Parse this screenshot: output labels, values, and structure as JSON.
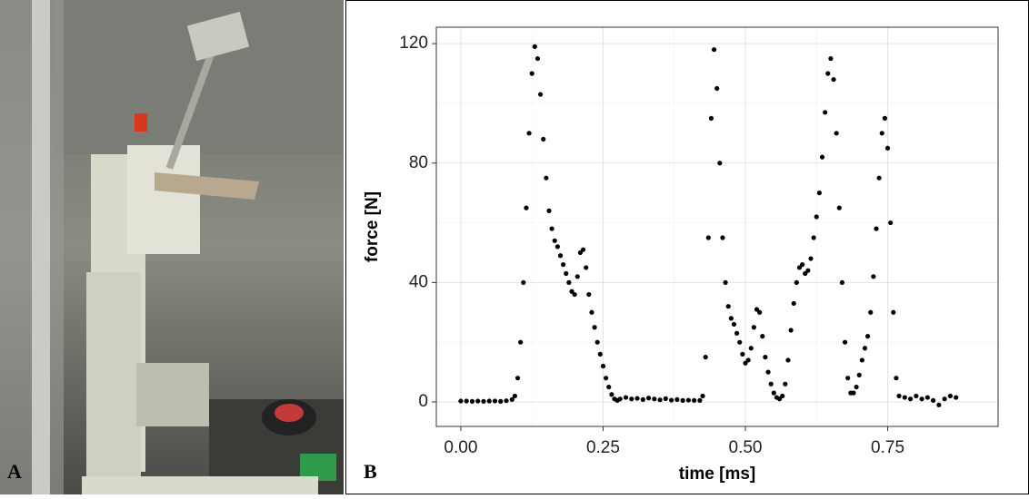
{
  "panel_labels": [
    "A",
    "B"
  ],
  "chart_data": {
    "type": "scatter",
    "x_label": "time [ms]",
    "y_label": "force [N]",
    "x": [
      0,
      0.01,
      0.02,
      0.03,
      0.04,
      0.05,
      0.06,
      0.07,
      0.08,
      0.09,
      0.095,
      0.1,
      0.105,
      0.11,
      0.115,
      0.12,
      0.125,
      0.13,
      0.135,
      0.14,
      0.145,
      0.15,
      0.155,
      0.16,
      0.165,
      0.17,
      0.175,
      0.18,
      0.185,
      0.19,
      0.195,
      0.2,
      0.205,
      0.21,
      0.215,
      0.22,
      0.225,
      0.23,
      0.235,
      0.24,
      0.245,
      0.25,
      0.255,
      0.26,
      0.265,
      0.27,
      0.275,
      0.28,
      0.29,
      0.3,
      0.31,
      0.32,
      0.33,
      0.34,
      0.35,
      0.36,
      0.37,
      0.38,
      0.39,
      0.4,
      0.41,
      0.42,
      0.425,
      0.43,
      0.435,
      0.44,
      0.445,
      0.45,
      0.455,
      0.46,
      0.465,
      0.47,
      0.475,
      0.48,
      0.485,
      0.49,
      0.495,
      0.5,
      0.505,
      0.51,
      0.515,
      0.52,
      0.525,
      0.53,
      0.535,
      0.54,
      0.545,
      0.55,
      0.555,
      0.56,
      0.565,
      0.57,
      0.575,
      0.58,
      0.585,
      0.59,
      0.595,
      0.6,
      0.605,
      0.61,
      0.615,
      0.62,
      0.625,
      0.63,
      0.635,
      0.64,
      0.645,
      0.65,
      0.655,
      0.66,
      0.665,
      0.67,
      0.675,
      0.68,
      0.685,
      0.69,
      0.695,
      0.7,
      0.705,
      0.71,
      0.715,
      0.72,
      0.725,
      0.73,
      0.735,
      0.74,
      0.745,
      0.75,
      0.755,
      0.76,
      0.765,
      0.77,
      0.78,
      0.79,
      0.8,
      0.81,
      0.82,
      0.83,
      0.84,
      0.85,
      0.86,
      0.87
    ],
    "values": [
      0.3,
      0.3,
      0.2,
      0.3,
      0.2,
      0.3,
      0.3,
      0.2,
      0.4,
      0.8,
      2,
      8,
      20,
      40,
      65,
      90,
      110,
      119,
      115,
      103,
      88,
      75,
      64,
      58,
      54,
      52,
      49,
      46,
      43,
      40,
      37,
      36,
      42,
      50,
      51,
      45,
      36,
      30,
      25,
      20,
      16,
      12,
      8,
      5,
      2.5,
      1,
      0.5,
      1,
      1.5,
      1,
      1.2,
      0.8,
      1.3,
      1,
      0.7,
      1.1,
      0.6,
      0.8,
      0.5,
      0.6,
      0.5,
      0.5,
      2,
      15,
      55,
      95,
      118,
      105,
      80,
      55,
      40,
      32,
      28,
      26,
      23,
      20,
      16,
      13,
      14,
      18,
      25,
      31,
      30,
      22,
      15,
      10,
      6,
      3,
      1.5,
      1,
      2,
      6,
      14,
      24,
      33,
      40,
      45,
      46,
      43,
      44,
      48,
      55,
      62,
      70,
      82,
      97,
      110,
      115,
      108,
      90,
      65,
      40,
      20,
      8,
      3,
      3,
      5,
      9,
      14,
      18,
      22,
      30,
      42,
      58,
      75,
      90,
      95,
      85,
      60,
      30,
      8,
      2,
      1.5,
      1,
      2,
      1,
      1.5,
      0.5,
      -1,
      1,
      2,
      1.5
    ],
    "color": "#000000",
    "xlim": [
      -0.043,
      0.944
    ],
    "ylim": [
      -8.2,
      125.5
    ],
    "xticks": [
      {
        "value": 0,
        "label": "0.00"
      },
      {
        "value": 0.25,
        "label": "0.25"
      },
      {
        "value": 0.5,
        "label": "0.50"
      },
      {
        "value": 0.75,
        "label": "0.75"
      }
    ],
    "yticks": [
      0,
      40,
      80,
      120
    ],
    "grid": true
  }
}
